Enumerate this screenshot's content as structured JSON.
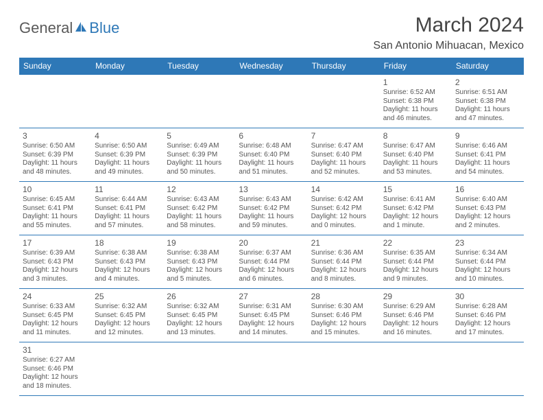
{
  "logo": {
    "text_general": "General",
    "text_blue": "Blue"
  },
  "title": "March 2024",
  "location": "San Antonio Mihuacan, Mexico",
  "colors": {
    "header_bg": "#2e78b7",
    "header_text": "#ffffff",
    "body_text": "#555555",
    "border": "#2e78b7"
  },
  "layout": {
    "columns": 7,
    "rows": 6,
    "cell_font_size_pt": 7.5,
    "header_font_size_pt": 9
  },
  "day_headers": [
    "Sunday",
    "Monday",
    "Tuesday",
    "Wednesday",
    "Thursday",
    "Friday",
    "Saturday"
  ],
  "weeks": [
    [
      null,
      null,
      null,
      null,
      null,
      {
        "n": "1",
        "sunrise": "Sunrise: 6:52 AM",
        "sunset": "Sunset: 6:38 PM",
        "day1": "Daylight: 11 hours",
        "day2": "and 46 minutes."
      },
      {
        "n": "2",
        "sunrise": "Sunrise: 6:51 AM",
        "sunset": "Sunset: 6:38 PM",
        "day1": "Daylight: 11 hours",
        "day2": "and 47 minutes."
      }
    ],
    [
      {
        "n": "3",
        "sunrise": "Sunrise: 6:50 AM",
        "sunset": "Sunset: 6:39 PM",
        "day1": "Daylight: 11 hours",
        "day2": "and 48 minutes."
      },
      {
        "n": "4",
        "sunrise": "Sunrise: 6:50 AM",
        "sunset": "Sunset: 6:39 PM",
        "day1": "Daylight: 11 hours",
        "day2": "and 49 minutes."
      },
      {
        "n": "5",
        "sunrise": "Sunrise: 6:49 AM",
        "sunset": "Sunset: 6:39 PM",
        "day1": "Daylight: 11 hours",
        "day2": "and 50 minutes."
      },
      {
        "n": "6",
        "sunrise": "Sunrise: 6:48 AM",
        "sunset": "Sunset: 6:40 PM",
        "day1": "Daylight: 11 hours",
        "day2": "and 51 minutes."
      },
      {
        "n": "7",
        "sunrise": "Sunrise: 6:47 AM",
        "sunset": "Sunset: 6:40 PM",
        "day1": "Daylight: 11 hours",
        "day2": "and 52 minutes."
      },
      {
        "n": "8",
        "sunrise": "Sunrise: 6:47 AM",
        "sunset": "Sunset: 6:40 PM",
        "day1": "Daylight: 11 hours",
        "day2": "and 53 minutes."
      },
      {
        "n": "9",
        "sunrise": "Sunrise: 6:46 AM",
        "sunset": "Sunset: 6:41 PM",
        "day1": "Daylight: 11 hours",
        "day2": "and 54 minutes."
      }
    ],
    [
      {
        "n": "10",
        "sunrise": "Sunrise: 6:45 AM",
        "sunset": "Sunset: 6:41 PM",
        "day1": "Daylight: 11 hours",
        "day2": "and 55 minutes."
      },
      {
        "n": "11",
        "sunrise": "Sunrise: 6:44 AM",
        "sunset": "Sunset: 6:41 PM",
        "day1": "Daylight: 11 hours",
        "day2": "and 57 minutes."
      },
      {
        "n": "12",
        "sunrise": "Sunrise: 6:43 AM",
        "sunset": "Sunset: 6:42 PM",
        "day1": "Daylight: 11 hours",
        "day2": "and 58 minutes."
      },
      {
        "n": "13",
        "sunrise": "Sunrise: 6:43 AM",
        "sunset": "Sunset: 6:42 PM",
        "day1": "Daylight: 11 hours",
        "day2": "and 59 minutes."
      },
      {
        "n": "14",
        "sunrise": "Sunrise: 6:42 AM",
        "sunset": "Sunset: 6:42 PM",
        "day1": "Daylight: 12 hours",
        "day2": "and 0 minutes."
      },
      {
        "n": "15",
        "sunrise": "Sunrise: 6:41 AM",
        "sunset": "Sunset: 6:42 PM",
        "day1": "Daylight: 12 hours",
        "day2": "and 1 minute."
      },
      {
        "n": "16",
        "sunrise": "Sunrise: 6:40 AM",
        "sunset": "Sunset: 6:43 PM",
        "day1": "Daylight: 12 hours",
        "day2": "and 2 minutes."
      }
    ],
    [
      {
        "n": "17",
        "sunrise": "Sunrise: 6:39 AM",
        "sunset": "Sunset: 6:43 PM",
        "day1": "Daylight: 12 hours",
        "day2": "and 3 minutes."
      },
      {
        "n": "18",
        "sunrise": "Sunrise: 6:38 AM",
        "sunset": "Sunset: 6:43 PM",
        "day1": "Daylight: 12 hours",
        "day2": "and 4 minutes."
      },
      {
        "n": "19",
        "sunrise": "Sunrise: 6:38 AM",
        "sunset": "Sunset: 6:43 PM",
        "day1": "Daylight: 12 hours",
        "day2": "and 5 minutes."
      },
      {
        "n": "20",
        "sunrise": "Sunrise: 6:37 AM",
        "sunset": "Sunset: 6:44 PM",
        "day1": "Daylight: 12 hours",
        "day2": "and 6 minutes."
      },
      {
        "n": "21",
        "sunrise": "Sunrise: 6:36 AM",
        "sunset": "Sunset: 6:44 PM",
        "day1": "Daylight: 12 hours",
        "day2": "and 8 minutes."
      },
      {
        "n": "22",
        "sunrise": "Sunrise: 6:35 AM",
        "sunset": "Sunset: 6:44 PM",
        "day1": "Daylight: 12 hours",
        "day2": "and 9 minutes."
      },
      {
        "n": "23",
        "sunrise": "Sunrise: 6:34 AM",
        "sunset": "Sunset: 6:44 PM",
        "day1": "Daylight: 12 hours",
        "day2": "and 10 minutes."
      }
    ],
    [
      {
        "n": "24",
        "sunrise": "Sunrise: 6:33 AM",
        "sunset": "Sunset: 6:45 PM",
        "day1": "Daylight: 12 hours",
        "day2": "and 11 minutes."
      },
      {
        "n": "25",
        "sunrise": "Sunrise: 6:32 AM",
        "sunset": "Sunset: 6:45 PM",
        "day1": "Daylight: 12 hours",
        "day2": "and 12 minutes."
      },
      {
        "n": "26",
        "sunrise": "Sunrise: 6:32 AM",
        "sunset": "Sunset: 6:45 PM",
        "day1": "Daylight: 12 hours",
        "day2": "and 13 minutes."
      },
      {
        "n": "27",
        "sunrise": "Sunrise: 6:31 AM",
        "sunset": "Sunset: 6:45 PM",
        "day1": "Daylight: 12 hours",
        "day2": "and 14 minutes."
      },
      {
        "n": "28",
        "sunrise": "Sunrise: 6:30 AM",
        "sunset": "Sunset: 6:46 PM",
        "day1": "Daylight: 12 hours",
        "day2": "and 15 minutes."
      },
      {
        "n": "29",
        "sunrise": "Sunrise: 6:29 AM",
        "sunset": "Sunset: 6:46 PM",
        "day1": "Daylight: 12 hours",
        "day2": "and 16 minutes."
      },
      {
        "n": "30",
        "sunrise": "Sunrise: 6:28 AM",
        "sunset": "Sunset: 6:46 PM",
        "day1": "Daylight: 12 hours",
        "day2": "and 17 minutes."
      }
    ],
    [
      {
        "n": "31",
        "sunrise": "Sunrise: 6:27 AM",
        "sunset": "Sunset: 6:46 PM",
        "day1": "Daylight: 12 hours",
        "day2": "and 18 minutes."
      },
      null,
      null,
      null,
      null,
      null,
      null
    ]
  ]
}
